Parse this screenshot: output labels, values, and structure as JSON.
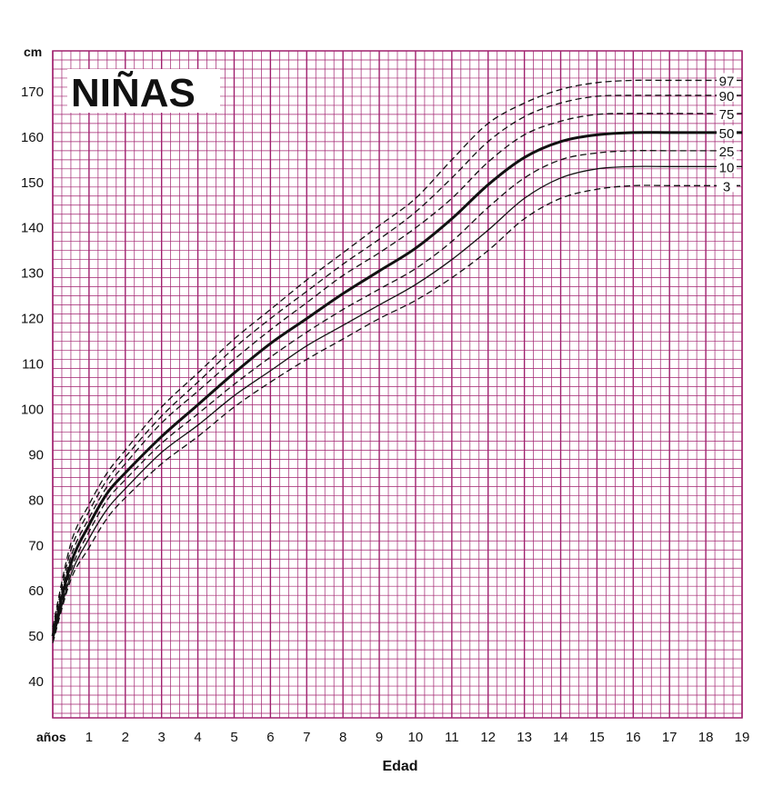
{
  "chart_data": {
    "type": "line",
    "title": "NIÑAS",
    "xlabel": "Edad",
    "ylabel": "cm",
    "x_unit_label": "años",
    "xlim": [
      0,
      19
    ],
    "ylim": [
      32,
      179
    ],
    "grid": true,
    "grid_color": "#a0206e",
    "line_color": "#111111",
    "x_ticks": [
      {
        "value": 1,
        "label": "1"
      },
      {
        "value": 2,
        "label": "2"
      },
      {
        "value": 3,
        "label": "3"
      },
      {
        "value": 4,
        "label": "4"
      },
      {
        "value": 5,
        "label": "5"
      },
      {
        "value": 6,
        "label": "6"
      },
      {
        "value": 7,
        "label": "7"
      },
      {
        "value": 8,
        "label": "8"
      },
      {
        "value": 9,
        "label": "9"
      },
      {
        "value": 10,
        "label": "10"
      },
      {
        "value": 11,
        "label": "11"
      },
      {
        "value": 12,
        "label": "12"
      },
      {
        "value": 13,
        "label": "13"
      },
      {
        "value": 14,
        "label": "14"
      },
      {
        "value": 15,
        "label": "15"
      },
      {
        "value": 16,
        "label": "16"
      },
      {
        "value": 17,
        "label": "17"
      },
      {
        "value": 18,
        "label": "18"
      },
      {
        "value": 19,
        "label": "19"
      }
    ],
    "y_ticks": [
      {
        "value": 40,
        "label": "40"
      },
      {
        "value": 50,
        "label": "50"
      },
      {
        "value": 60,
        "label": "60"
      },
      {
        "value": 70,
        "label": "70"
      },
      {
        "value": 80,
        "label": "80"
      },
      {
        "value": 90,
        "label": "90"
      },
      {
        "value": 100,
        "label": "100"
      },
      {
        "value": 110,
        "label": "110"
      },
      {
        "value": 120,
        "label": "120"
      },
      {
        "value": 130,
        "label": "130"
      },
      {
        "value": 140,
        "label": "140"
      },
      {
        "value": 150,
        "label": "150"
      },
      {
        "value": 160,
        "label": "160"
      },
      {
        "value": 170,
        "label": "170"
      }
    ],
    "x": [
      0,
      0.5,
      1,
      1.5,
      2,
      3,
      4,
      5,
      6,
      7,
      8,
      9,
      10,
      11,
      12,
      13,
      14,
      15,
      16,
      17,
      18,
      19
    ],
    "series": [
      {
        "name": "97",
        "style": "dashed",
        "values": [
          52,
          70.5,
          79,
          86,
          91,
          100.5,
          108,
          115.5,
          122,
          128.5,
          134.5,
          140.5,
          146.5,
          155,
          163,
          167.5,
          170.5,
          172,
          172.5,
          172.5,
          172.5,
          172.5
        ]
      },
      {
        "name": "90",
        "style": "dashed",
        "values": [
          51.5,
          69,
          77.5,
          84.5,
          89.5,
          98.5,
          106,
          113.5,
          120,
          126,
          132,
          137.5,
          143.5,
          151,
          159,
          164.5,
          167.5,
          169,
          169.2,
          169.2,
          169.2,
          169.2
        ]
      },
      {
        "name": "75",
        "style": "dashed",
        "values": [
          51,
          67.5,
          76,
          83,
          88,
          97,
          104,
          111,
          117.5,
          123.5,
          129.5,
          134.5,
          140,
          146.5,
          154.5,
          160.5,
          163.5,
          165,
          165.2,
          165.2,
          165.2,
          165.2
        ]
      },
      {
        "name": "50",
        "style": "solid",
        "values": [
          50,
          66,
          74.5,
          81.5,
          86,
          94,
          101,
          108,
          114.5,
          120,
          125.5,
          130.5,
          135.5,
          142,
          149.5,
          155.5,
          159,
          160.5,
          161,
          161,
          161,
          161
        ]
      },
      {
        "name": "25",
        "style": "dashed",
        "values": [
          49.5,
          64.5,
          73,
          80,
          84.5,
          92.5,
          99,
          105.5,
          111.5,
          117,
          122,
          126.5,
          131,
          137,
          144.5,
          151,
          155,
          156.5,
          157,
          157,
          157,
          157
        ]
      },
      {
        "name": "10",
        "style": "solid",
        "values": [
          49,
          63.5,
          71.5,
          78,
          82.5,
          90.5,
          96.5,
          103,
          108.5,
          114,
          118.5,
          123,
          127.5,
          133,
          139.5,
          146.5,
          151,
          153,
          153.5,
          153.5,
          153.5,
          153.5
        ]
      },
      {
        "name": "3",
        "style": "dashed",
        "values": [
          48.5,
          62.5,
          69.5,
          76,
          80.5,
          88,
          94,
          100.5,
          106,
          111,
          115.5,
          120,
          124,
          129,
          135,
          142,
          146.5,
          148.5,
          149.3,
          149.3,
          149.3,
          149.3
        ]
      }
    ]
  }
}
